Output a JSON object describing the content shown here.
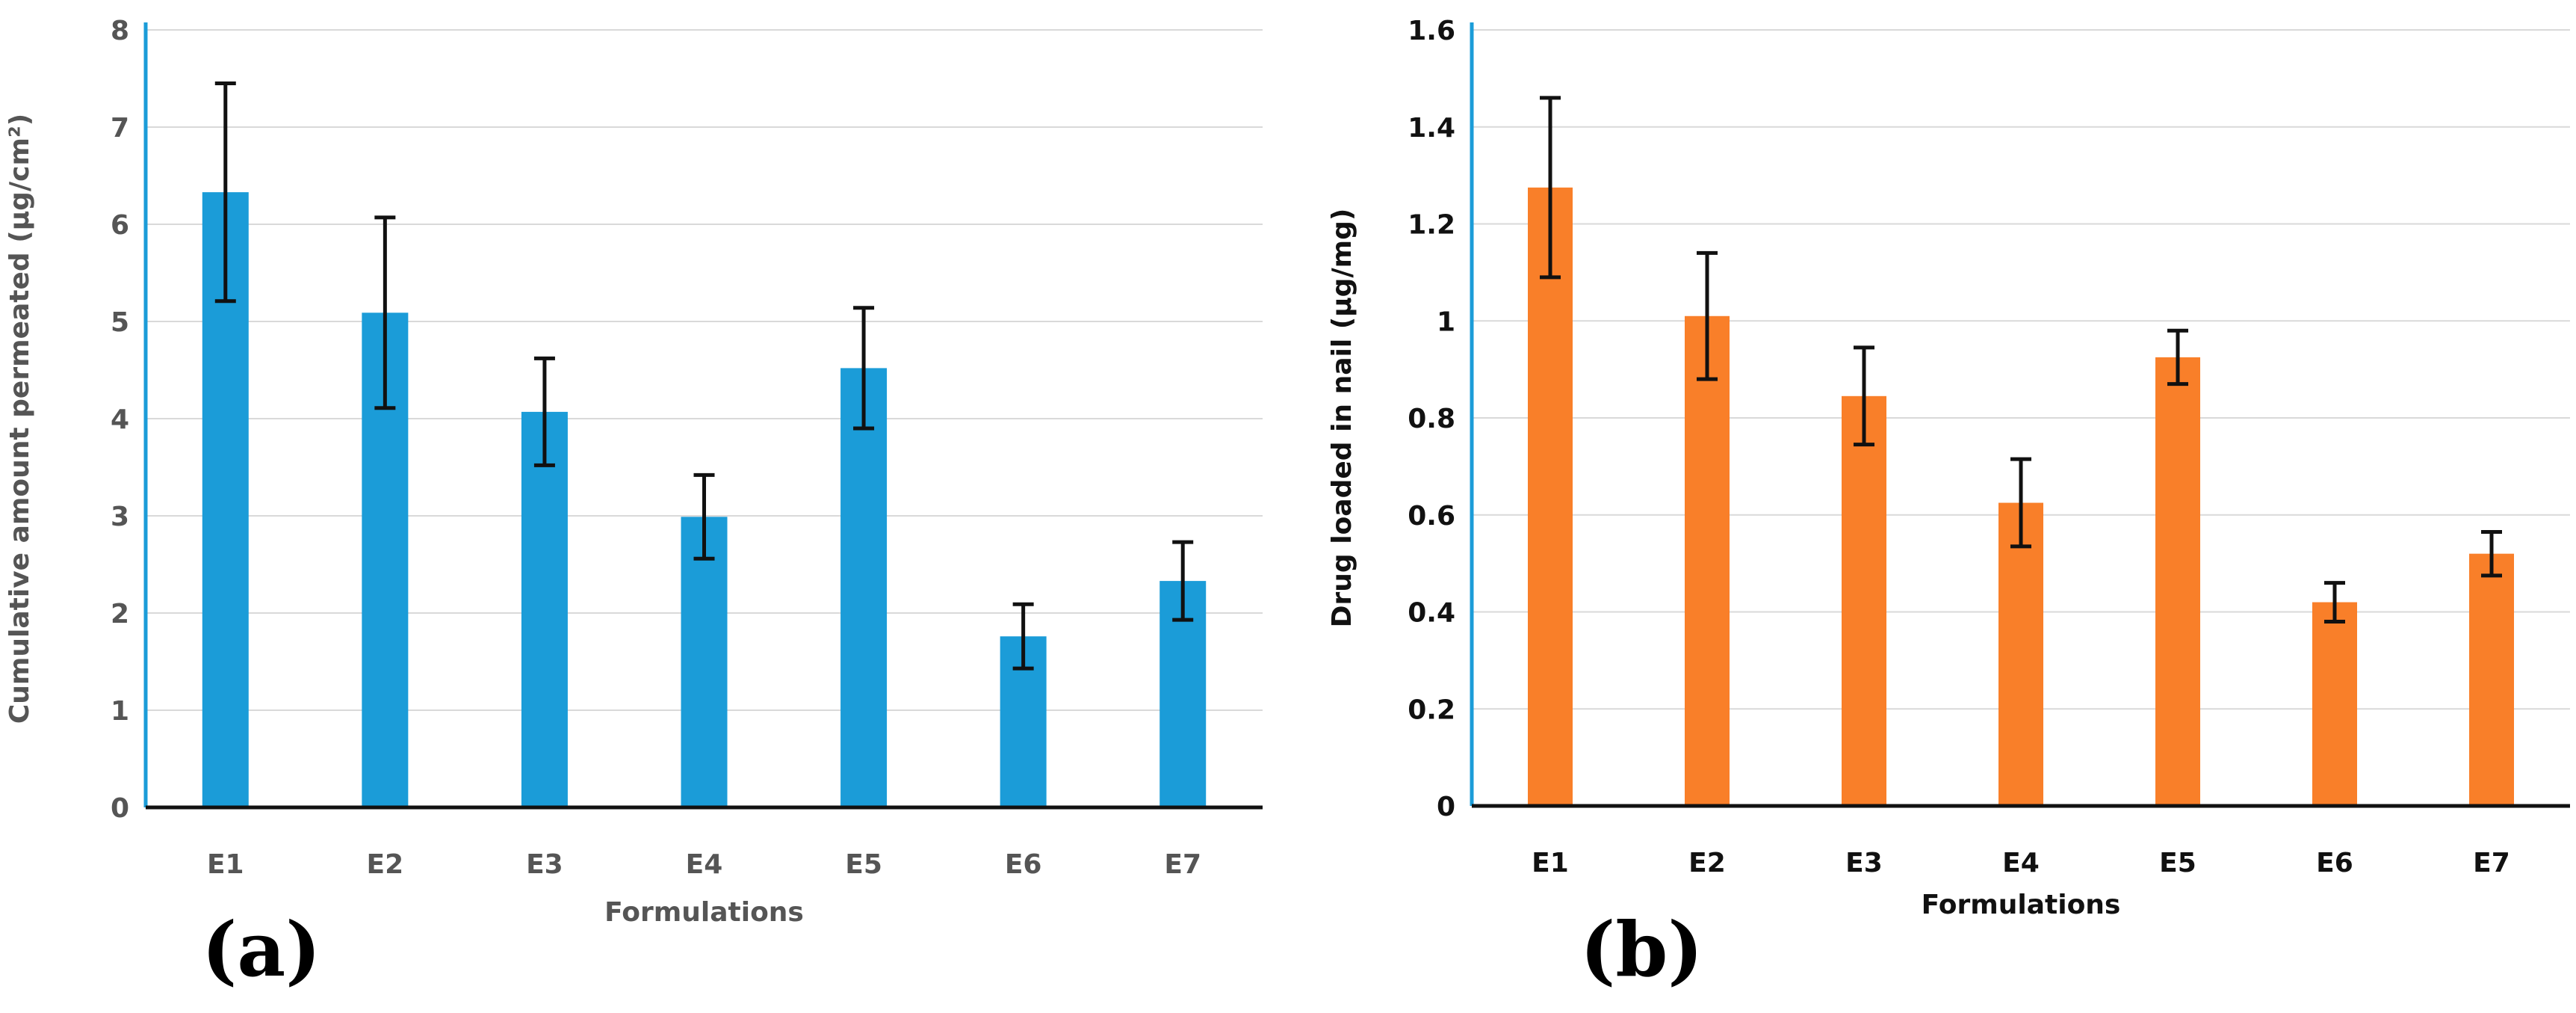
{
  "panels": [
    {
      "label": "(a)"
    },
    {
      "label": "(b)"
    }
  ],
  "chart_data": [
    {
      "type": "bar",
      "categories": [
        "E1",
        "E2",
        "E3",
        "E4",
        "E5",
        "E6",
        "E7"
      ],
      "series": [
        {
          "values": [
            6.33,
            5.09,
            4.07,
            2.99,
            4.52,
            1.76,
            2.33
          ],
          "error_plus": [
            1.12,
            0.98,
            0.55,
            0.43,
            0.62,
            0.33,
            0.4
          ],
          "error_minus": [
            1.12,
            0.98,
            0.55,
            0.43,
            0.62,
            0.33,
            0.4
          ],
          "color": "#1b9cd8"
        }
      ],
      "xlabel": "Formulations",
      "ylabel": "Cumulative amount permeated (µg/cm²)",
      "ylim": [
        0,
        8
      ],
      "yticks": [
        0,
        1,
        2,
        3,
        4,
        5,
        6,
        7,
        8
      ],
      "grid": true,
      "axis_color": "#1b9cd8",
      "bold_labels": false
    },
    {
      "type": "bar",
      "categories": [
        "E1",
        "E2",
        "E3",
        "E4",
        "E5",
        "E6",
        "E7"
      ],
      "series": [
        {
          "values": [
            1.275,
            1.01,
            0.845,
            0.625,
            0.925,
            0.42,
            0.52
          ],
          "error_plus": [
            0.185,
            0.13,
            0.1,
            0.09,
            0.055,
            0.04,
            0.045
          ],
          "error_minus": [
            0.185,
            0.13,
            0.1,
            0.09,
            0.055,
            0.04,
            0.045
          ],
          "color": "#f97f29"
        }
      ],
      "xlabel": "Formulations",
      "ylabel": "Drug loaded in nail (µg/mg)",
      "ylim": [
        0,
        1.6
      ],
      "yticks": [
        0,
        0.2,
        0.4,
        0.6,
        0.8,
        1,
        1.2,
        1.4,
        1.6
      ],
      "grid": true,
      "axis_color": "#1b9cd8",
      "bold_labels": true
    }
  ]
}
